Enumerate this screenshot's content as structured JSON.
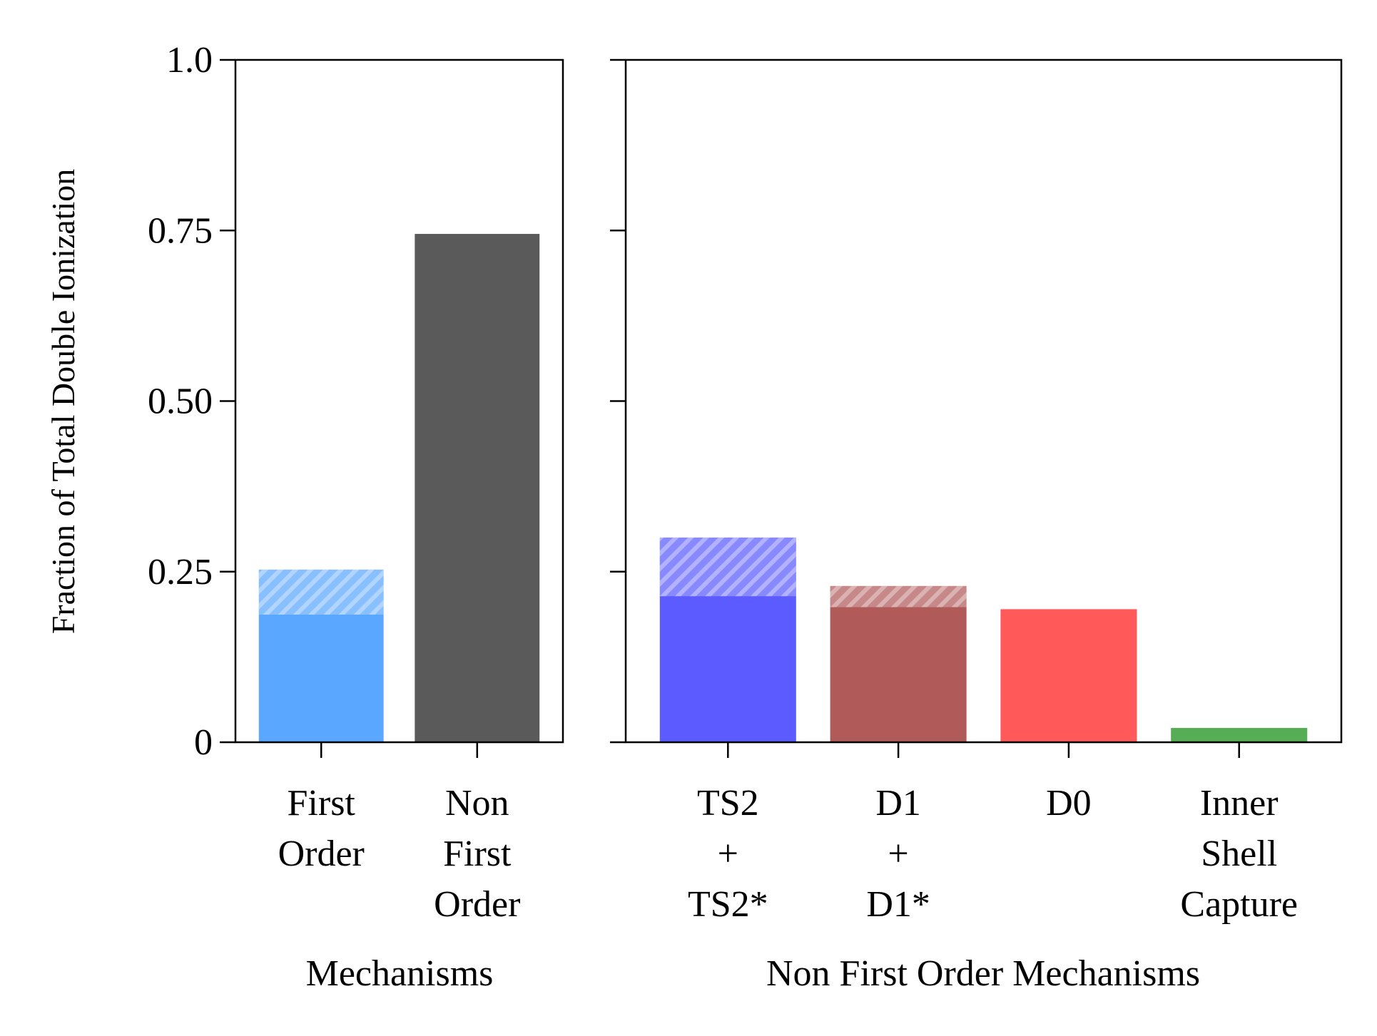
{
  "chart_data": [
    {
      "type": "bar",
      "panel": "left",
      "xlabel": "Mechanisms",
      "ylabel": "Fraction of Total Double Ionization",
      "ylim": [
        0,
        1.0
      ],
      "yticks": [
        0,
        0.25,
        0.5,
        0.75,
        1.0
      ],
      "ytick_labels": [
        "0",
        "0.25",
        "0.50",
        "0.75",
        "1.0"
      ],
      "categories": [
        [
          "First",
          "Order"
        ],
        [
          "Non",
          "First",
          "Order"
        ]
      ],
      "values": [
        0.253,
        0.745
      ],
      "solid_values": [
        0.187,
        0.745
      ],
      "colors": [
        "#59a7ff",
        "#5a5a5a"
      ]
    },
    {
      "type": "bar",
      "panel": "right",
      "xlabel": "Non First Order Mechanisms",
      "ylim": [
        0,
        1.0
      ],
      "categories": [
        [
          "TS2",
          "+",
          "TS2*"
        ],
        [
          "D1",
          "+",
          "D1*"
        ],
        [
          "D0"
        ],
        [
          "Inner",
          "Shell",
          "Capture"
        ]
      ],
      "values": [
        0.3,
        0.229,
        0.195,
        0.021
      ],
      "solid_values": [
        0.214,
        0.198,
        0.195,
        0.021
      ],
      "colors": [
        "#5b5bff",
        "#b05a5a",
        "#ff5959",
        "#56ad56"
      ]
    }
  ]
}
